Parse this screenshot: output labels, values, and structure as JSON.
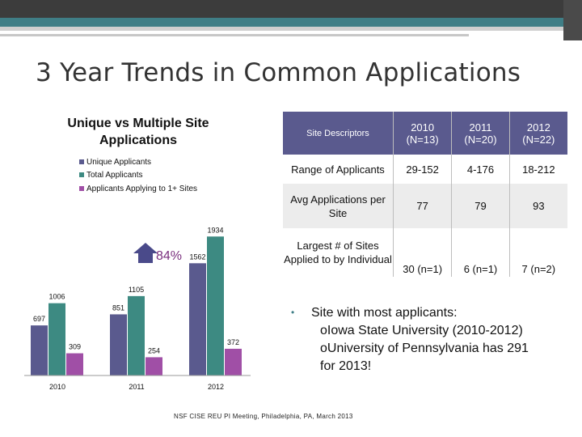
{
  "slide": {
    "title": "3 Year Trends in Common Applications",
    "footer": "NSF CISE REU PI Meeting, Philadelphia, PA, March 2013"
  },
  "colors": {
    "unique": "#5a5a8e",
    "total": "#3d8a82",
    "multi": "#a04fa6",
    "header": "#5a5a8e",
    "arrow": "#4a4a8a",
    "pct": "#7a2e7e"
  },
  "chart_data": {
    "type": "bar",
    "title": "Unique vs Multiple Site Applications",
    "categories": [
      "2010",
      "2011",
      "2012"
    ],
    "series": [
      {
        "name": "Unique Applicants",
        "values": [
          697,
          851,
          1562
        ]
      },
      {
        "name": "Total Applicants",
        "values": [
          1006,
          1105,
          1934
        ]
      },
      {
        "name": "Applicants Applying to 1+ Sites",
        "values": [
          309,
          254,
          372
        ]
      }
    ],
    "ylim": [
      0,
      2000
    ],
    "annotation": "84%"
  },
  "table": {
    "headers": [
      "Site Descriptors",
      "2010 (N=13)",
      "2011 (N=20)",
      "2012 (N=22)"
    ],
    "rows": [
      [
        "Range of Applicants",
        "29-152",
        "4-176",
        "18-212"
      ],
      [
        "Avg Applications per Site",
        "77",
        "79",
        "93"
      ],
      [
        "Largest # of Sites Applied to by Individual",
        "30 (n=1)",
        "6 (n=1)",
        "7 (n=2)"
      ]
    ]
  },
  "bullets": {
    "marker": "•",
    "main": "Site with most applicants:",
    "sub_marker": "o",
    "sub": [
      "Iowa State University (2010-2012)",
      "University of Pennsylvania has 291"
    ],
    "sub_cont": "for 2013!"
  }
}
